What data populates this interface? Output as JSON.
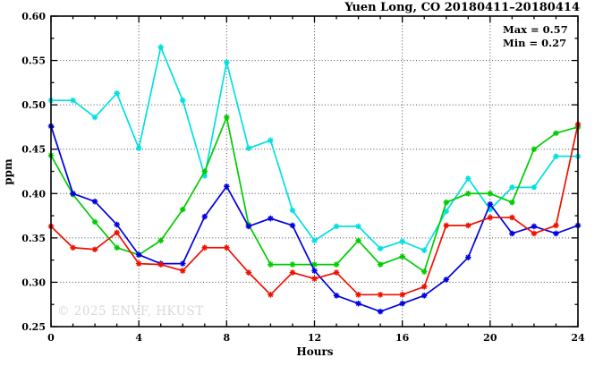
{
  "title": "Yuen Long, CO 20180411–20180414",
  "annotation": {
    "max_label": "Max = 0.57",
    "min_label": "Min = 0.27"
  },
  "watermark": "© 2025 ENVF, HKUST",
  "chart_data": {
    "type": "line",
    "title": "Yuen Long, CO 20180411–20180414",
    "xlabel": "Hours",
    "ylabel": "ppm",
    "xlim": [
      0,
      24
    ],
    "ylim": [
      0.25,
      0.6
    ],
    "x_major_ticks": [
      0,
      4,
      8,
      12,
      16,
      20,
      24
    ],
    "x_minor_step": 1,
    "y_major_ticks": [
      0.25,
      0.3,
      0.35,
      0.4,
      0.45,
      0.5,
      0.55,
      0.6
    ],
    "y_minor_step": 0.025,
    "grid": true,
    "legend_position": "inside-top-right",
    "annotations": [
      "Max = 0.57",
      "Min = 0.27"
    ],
    "x": [
      0,
      1,
      2,
      3,
      4,
      5,
      6,
      7,
      8,
      9,
      10,
      11,
      12,
      13,
      14,
      15,
      16,
      17,
      18,
      19,
      20,
      21,
      22,
      23,
      24
    ],
    "series": [
      {
        "name": "cyan-series",
        "color": "#00e0e0",
        "marker": "asterisk",
        "values": [
          0.505,
          0.505,
          0.486,
          0.513,
          0.451,
          0.565,
          0.505,
          0.42,
          0.548,
          0.451,
          0.46,
          0.381,
          0.347,
          0.363,
          0.363,
          0.338,
          0.346,
          0.336,
          0.38,
          0.417,
          0.382,
          0.407,
          0.407,
          0.442,
          0.442
        ]
      },
      {
        "name": "green-series",
        "color": "#00cc00",
        "marker": "asterisk",
        "values": [
          0.443,
          0.399,
          0.368,
          0.339,
          0.331,
          0.347,
          0.382,
          0.425,
          0.486,
          0.365,
          0.32,
          0.32,
          0.32,
          0.32,
          0.347,
          0.32,
          0.329,
          0.312,
          0.39,
          0.4,
          0.4,
          0.39,
          0.45,
          0.468,
          0.475
        ]
      },
      {
        "name": "blue-series",
        "color": "#0000e0",
        "marker": "asterisk",
        "values": [
          0.476,
          0.4,
          0.391,
          0.365,
          0.331,
          0.321,
          0.321,
          0.374,
          0.408,
          0.363,
          0.372,
          0.364,
          0.313,
          0.285,
          0.276,
          0.267,
          0.276,
          0.285,
          0.303,
          0.328,
          0.388,
          0.355,
          0.363,
          0.355,
          0.364
        ]
      },
      {
        "name": "red-series",
        "color": "#ee1100",
        "marker": "asterisk",
        "values": [
          0.363,
          0.339,
          0.337,
          0.356,
          0.321,
          0.32,
          0.313,
          0.339,
          0.339,
          0.311,
          0.286,
          0.311,
          0.304,
          0.311,
          0.286,
          0.286,
          0.286,
          0.295,
          0.364,
          0.364,
          0.373,
          0.373,
          0.355,
          0.364,
          0.478
        ]
      }
    ]
  }
}
